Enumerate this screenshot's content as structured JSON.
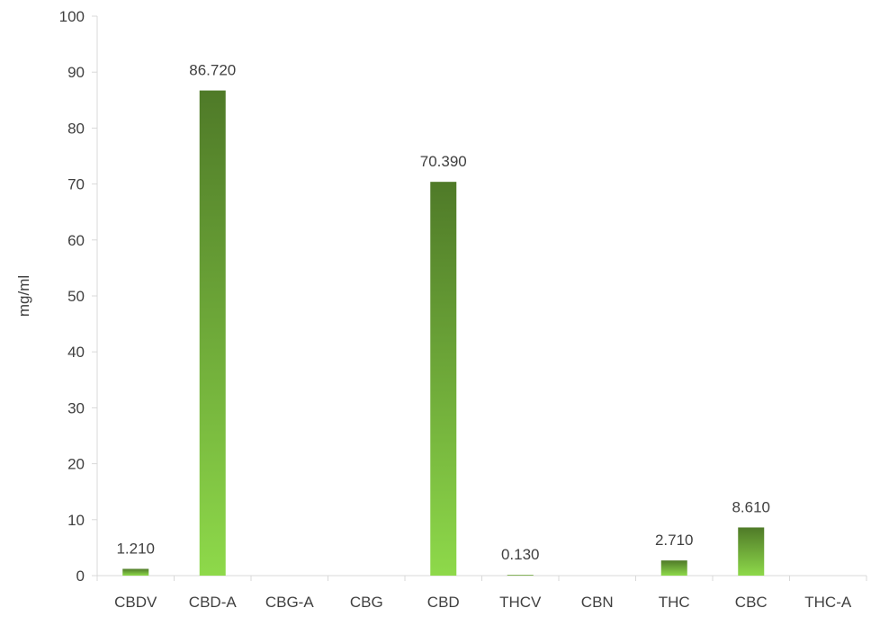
{
  "chart_data": {
    "type": "bar",
    "title": "",
    "xlabel": "",
    "ylabel": "mg/ml",
    "ylim": [
      0,
      100
    ],
    "yticks": [
      0,
      10,
      20,
      30,
      40,
      50,
      60,
      70,
      80,
      90,
      100
    ],
    "categories": [
      "CBDV",
      "CBD-A",
      "CBG-A",
      "CBG",
      "CBD",
      "THCV",
      "CBN",
      "THC",
      "CBC",
      "THC-A"
    ],
    "values": [
      1.21,
      86.72,
      0,
      0,
      70.39,
      0.13,
      0,
      2.71,
      8.61,
      0
    ],
    "data_labels": [
      "1.210",
      "86.720",
      "",
      "",
      "70.390",
      "0.130",
      "",
      "2.710",
      "8.610",
      ""
    ],
    "grid": false,
    "legend": "none",
    "colors": {
      "bar_top": "#4f7a28",
      "bar_bottom": "#8ed94a",
      "axis": "#d9d9d9",
      "text": "#404040"
    }
  }
}
